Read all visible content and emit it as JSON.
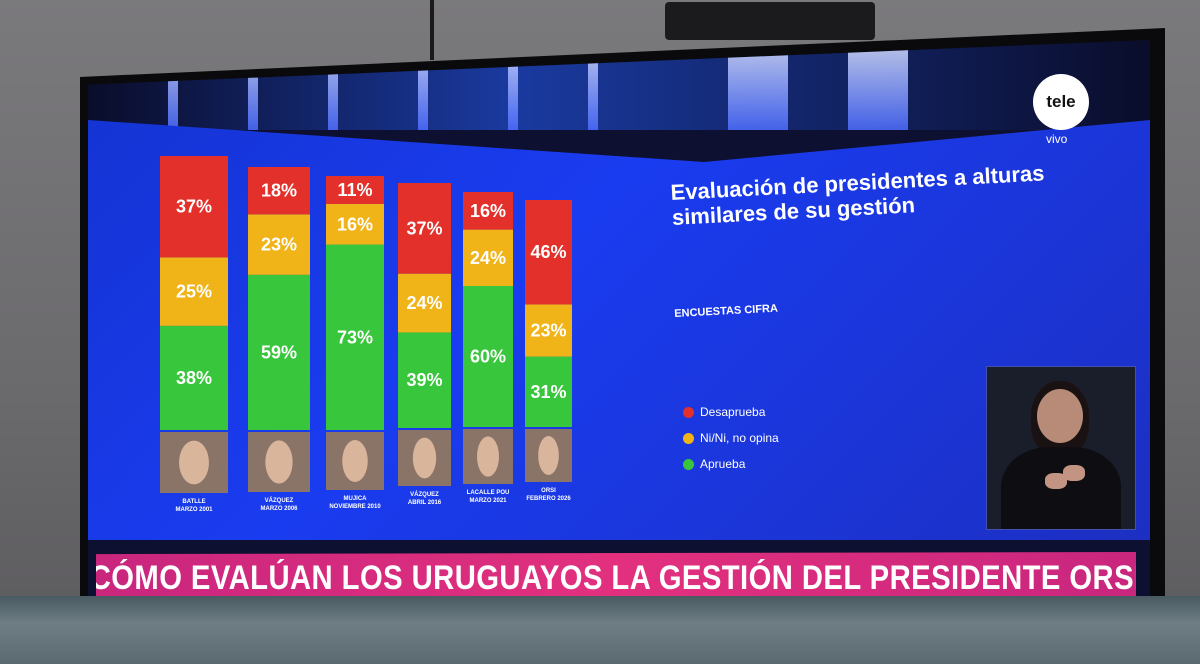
{
  "logo": {
    "text": "tele",
    "sub": "vivo"
  },
  "headline": "CÓMO EVALÚAN LOS URUGUAYOS LA GESTIÓN DEL PRESIDENTE ORSI",
  "colors": {
    "desaprueba": "#e4302a",
    "ni_ni": "#f0b318",
    "aprueba": "#38c63c"
  },
  "chart_data": {
    "type": "bar",
    "stacked": true,
    "title": "Evaluación de presidentes a alturas similares de su gestión",
    "subtitle": "ENCUESTAS CIFRA",
    "categories": [
      "BATLLE MARZO 2001",
      "VÁZQUEZ MARZO 2006",
      "MUJICA NOVIEMBRE 2010",
      "VÁZQUEZ ABRIL 2016",
      "LACALLE POU MARZO 2021",
      "ORSI FEBRERO 2026"
    ],
    "series": [
      {
        "name": "Aprueba",
        "values": [
          38,
          59,
          73,
          39,
          60,
          31
        ]
      },
      {
        "name": "Ni/Ni, no opina",
        "values": [
          25,
          23,
          16,
          24,
          24,
          23
        ]
      },
      {
        "name": "Desaprueba",
        "values": [
          37,
          18,
          11,
          37,
          16,
          46
        ]
      }
    ],
    "value_labels": [
      [
        "38%",
        "59%",
        "73%",
        "39%",
        "60%",
        "31%"
      ],
      [
        "25%",
        "23%",
        "16%",
        "24%",
        "24%",
        "23%"
      ],
      [
        "37%",
        "18%",
        "11%",
        "37%",
        "16%",
        "46%"
      ]
    ],
    "legend": [
      "Desaprueba",
      "Ni/Ni, no opina",
      "Aprueba"
    ],
    "legend_position": "right"
  }
}
